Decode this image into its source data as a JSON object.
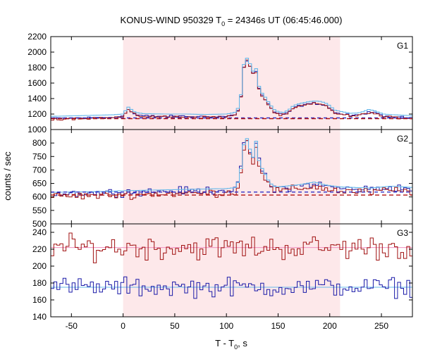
{
  "colors": {
    "background": "#ffffff",
    "interval_shade": "#fde8ea",
    "red_hist": "#a01010",
    "blue_hist": "#1a1aa8",
    "cyan_line": "#66b8ea",
    "red_bg": "#b01010",
    "blue_bg": "#3030c8",
    "pink_bg": "#f090c0",
    "axis": "#000000"
  },
  "chart_data": {
    "type": "line",
    "title": "KONUS-WIND 950329 T0 = 24346s UT (06:45:46.000)",
    "title_parts": {
      "pre": "KONUS-WIND 950329 T",
      "sub": "0",
      "post": " = 24346s UT (06:45:46.000)"
    },
    "xlabel": "T - T0, s",
    "xlabel_parts": {
      "pre": "T - T",
      "sub": "0",
      "post": ", s"
    },
    "ylabel": "counts / sec",
    "xlim": [
      -70,
      280
    ],
    "x_ticks": [
      -50,
      0,
      50,
      100,
      150,
      200,
      250
    ],
    "x_tick_labels": [
      "-50",
      "0",
      "50",
      "100",
      "150",
      "200",
      "250"
    ],
    "shaded_interval": [
      0,
      210
    ],
    "step_width": 2.944,
    "panels": [
      {
        "name": "G1",
        "ylim": [
          1000,
          2200
        ],
        "y_ticks": [
          1000,
          1200,
          1400,
          1600,
          1800,
          2000,
          2200
        ],
        "y_tick_labels": [
          "1000",
          "1200",
          "1400",
          "1600",
          "1800",
          "2000",
          "2200"
        ],
        "background_level": 1150,
        "profile": [
          [
            -70,
            1140
          ],
          [
            -40,
            1150
          ],
          [
            -10,
            1160
          ],
          [
            0,
            1170
          ],
          [
            2,
            1210
          ],
          [
            5,
            1260
          ],
          [
            8,
            1230
          ],
          [
            12,
            1190
          ],
          [
            20,
            1175
          ],
          [
            40,
            1170
          ],
          [
            60,
            1170
          ],
          [
            80,
            1165
          ],
          [
            100,
            1170
          ],
          [
            108,
            1190
          ],
          [
            112,
            1260
          ],
          [
            115,
            1500
          ],
          [
            117,
            1820
          ],
          [
            119,
            1900
          ],
          [
            122,
            1870
          ],
          [
            125,
            1690
          ],
          [
            128,
            1820
          ],
          [
            131,
            1550
          ],
          [
            134,
            1450
          ],
          [
            138,
            1380
          ],
          [
            142,
            1300
          ],
          [
            146,
            1230
          ],
          [
            150,
            1200
          ],
          [
            155,
            1190
          ],
          [
            160,
            1220
          ],
          [
            165,
            1280
          ],
          [
            172,
            1310
          ],
          [
            180,
            1330
          ],
          [
            186,
            1340
          ],
          [
            192,
            1330
          ],
          [
            198,
            1300
          ],
          [
            205,
            1220
          ],
          [
            212,
            1200
          ],
          [
            220,
            1180
          ],
          [
            228,
            1185
          ],
          [
            232,
            1200
          ],
          [
            238,
            1230
          ],
          [
            244,
            1210
          ],
          [
            252,
            1170
          ],
          [
            262,
            1160
          ],
          [
            280,
            1150
          ]
        ]
      },
      {
        "name": "G2",
        "ylim": [
          500,
          850
        ],
        "y_ticks": [
          500,
          550,
          600,
          650,
          700,
          750,
          800
        ],
        "y_tick_labels": [
          "500",
          "550",
          "600",
          "650",
          "700",
          "750",
          "800"
        ],
        "background_level": 618,
        "background_level_red": 607,
        "profile": [
          [
            -70,
            612
          ],
          [
            -20,
            615
          ],
          [
            0,
            618
          ],
          [
            50,
            622
          ],
          [
            100,
            626
          ],
          [
            110,
            630
          ],
          [
            114,
            700
          ],
          [
            117,
            790
          ],
          [
            120,
            812
          ],
          [
            123,
            770
          ],
          [
            126,
            740
          ],
          [
            129,
            808
          ],
          [
            132,
            720
          ],
          [
            136,
            690
          ],
          [
            140,
            660
          ],
          [
            145,
            635
          ],
          [
            150,
            632
          ],
          [
            170,
            640
          ],
          [
            185,
            650
          ],
          [
            195,
            640
          ],
          [
            210,
            632
          ],
          [
            240,
            628
          ],
          [
            260,
            635
          ],
          [
            280,
            630
          ]
        ]
      },
      {
        "name": "G3",
        "ylim": [
          140,
          250
        ],
        "y_ticks": [
          140,
          160,
          180,
          200,
          220,
          240
        ],
        "y_tick_labels": [
          "140",
          "160",
          "180",
          "200",
          "220",
          "240"
        ],
        "red_level": 222,
        "blue_level": 175
      }
    ]
  }
}
